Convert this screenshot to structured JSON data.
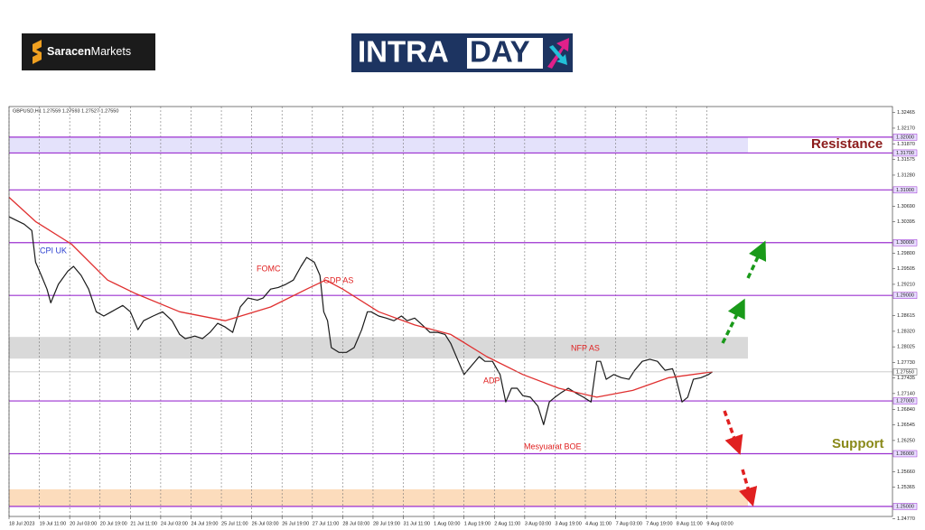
{
  "brand": {
    "broker_a": "Saracen",
    "broker_b": "Markets",
    "title_a": "INTRA",
    "title_b": "DAY"
  },
  "chart_data": {
    "type": "line",
    "symbol_info": "GBPUSD,H1  1.27559 1.27593 1.27527 1.27550",
    "xlim": [
      0,
      466
    ],
    "ylim": [
      1.2481,
      1.3258
    ],
    "grid": "x",
    "xticks": [
      {
        "value": 0,
        "label": "18 Jul 2023"
      },
      {
        "value": 16,
        "label": "19 Jul 11:00"
      },
      {
        "value": 32,
        "label": "20 Jul 03:00"
      },
      {
        "value": 48,
        "label": "20 Jul 19:00"
      },
      {
        "value": 64,
        "label": "21 Jul 11:00"
      },
      {
        "value": 80,
        "label": "24 Jul 03:00"
      },
      {
        "value": 96,
        "label": "24 Jul 19:00"
      },
      {
        "value": 112,
        "label": "25 Jul 11:00"
      },
      {
        "value": 128,
        "label": "26 Jul 03:00"
      },
      {
        "value": 144,
        "label": "26 Jul 19:00"
      },
      {
        "value": 160,
        "label": "27 Jul 11:00"
      },
      {
        "value": 176,
        "label": "28 Jul 03:00"
      },
      {
        "value": 192,
        "label": "28 Jul 19:00"
      },
      {
        "value": 208,
        "label": "31 Jul 11:00"
      },
      {
        "value": 224,
        "label": "1 Aug 03:00"
      },
      {
        "value": 240,
        "label": "1 Aug 19:00"
      },
      {
        "value": 256,
        "label": "2 Aug 11:00"
      },
      {
        "value": 272,
        "label": "3 Aug 03:00"
      },
      {
        "value": 288,
        "label": "3 Aug 19:00"
      },
      {
        "value": 304,
        "label": "4 Aug 11:00"
      },
      {
        "value": 320,
        "label": "7 Aug 03:00"
      },
      {
        "value": 336,
        "label": "7 Aug 19:00"
      },
      {
        "value": 352,
        "label": "8 Aug 11:00"
      },
      {
        "value": 368,
        "label": "9 Aug 03:00"
      }
    ],
    "yticks": [
      1.32465,
      {
        "value": 1.3217,
        "label": "1.32170"
      },
      {
        "value": 1.3187,
        "label": "1.31870"
      },
      1.31575,
      {
        "value": 1.3128,
        "label": "1.31280"
      },
      {
        "value": 1.3069,
        "label": "1.30690"
      },
      1.30395,
      {
        "value": 1.298,
        "label": "1.29800"
      },
      1.29505,
      {
        "value": 1.2921,
        "label": "1.29210"
      },
      1.28615,
      {
        "value": 1.2832,
        "label": "1.28320"
      },
      1.28025,
      {
        "value": 1.2773,
        "label": "1.27730"
      },
      1.27435,
      {
        "value": 1.2714,
        "label": "1.27140"
      },
      {
        "value": 1.2684,
        "label": "1.26840"
      },
      1.26545,
      {
        "value": 1.2625,
        "label": "1.26250"
      },
      {
        "value": 1.2566,
        "label": "1.25660"
      },
      1.25365,
      {
        "value": 1.2477,
        "label": "1.24770"
      }
    ],
    "levels": [
      {
        "value": 1.32,
        "label": "1.32000"
      },
      {
        "value": 1.317,
        "label": "1.31700"
      },
      {
        "value": 1.31,
        "label": "1.31000"
      },
      {
        "value": 1.3,
        "label": "1.30000"
      },
      {
        "value": 1.29,
        "label": "1.29000"
      },
      {
        "value": 1.27,
        "label": "1.27000"
      },
      {
        "value": 1.26,
        "label": "1.26000"
      },
      {
        "value": 1.25,
        "label": "1.25000"
      }
    ],
    "level_color": "#9b30d0",
    "zones": [
      {
        "from": 1.317,
        "to": 1.32,
        "color": "#e4e2fb"
      },
      {
        "from": 1.27802,
        "to": 1.28213,
        "color": "#d9d9d9"
      },
      {
        "from": 1.25,
        "to": 1.25325,
        "color": "#fcdcbc"
      }
    ],
    "last_price": {
      "value": 1.2755,
      "label": "1.27550"
    },
    "series": [
      {
        "color": "#1a1a1a",
        "x": [
          0,
          8,
          12,
          14,
          17,
          20,
          22,
          26,
          31,
          34,
          38,
          42,
          46,
          50,
          54,
          60,
          64,
          68,
          71,
          76,
          81,
          86,
          90,
          93,
          98,
          102,
          106,
          110,
          114,
          118,
          122,
          126,
          131,
          134,
          138,
          142,
          146,
          150,
          154,
          157,
          161,
          164,
          166,
          168,
          170,
          174,
          178,
          182,
          186,
          189,
          191,
          195,
          199,
          203,
          207,
          210,
          214,
          218,
          222,
          226,
          230,
          233,
          237,
          240,
          244,
          248,
          251,
          255,
          259,
          262,
          265,
          268,
          271,
          275,
          279,
          282,
          285,
          288,
          291,
          295,
          299,
          303,
          307,
          310,
          312,
          315,
          319,
          323,
          327,
          330,
          334,
          338,
          342,
          346,
          350,
          352,
          355,
          358,
          361,
          365,
          369,
          371
        ],
        "values": [
          1.3049,
          1.3035,
          1.3023,
          1.2963,
          1.2938,
          1.2912,
          1.2886,
          1.2921,
          1.2946,
          1.2955,
          1.2938,
          1.2912,
          1.2869,
          1.2861,
          1.2869,
          1.2881,
          1.2869,
          1.2835,
          1.2852,
          1.2861,
          1.2869,
          1.2852,
          1.2826,
          1.2818,
          1.2823,
          1.2818,
          1.283,
          1.2847,
          1.284,
          1.283,
          1.2878,
          1.2895,
          1.2891,
          1.2895,
          1.2912,
          1.2915,
          1.2921,
          1.2929,
          1.2955,
          1.2972,
          1.2963,
          1.2938,
          1.2869,
          1.2852,
          1.2801,
          1.2792,
          1.2792,
          1.2801,
          1.2835,
          1.2869,
          1.2869,
          1.2861,
          1.2857,
          1.2852,
          1.2861,
          1.2852,
          1.2857,
          1.2844,
          1.283,
          1.283,
          1.2826,
          1.2809,
          1.2775,
          1.275,
          1.2767,
          1.2784,
          1.2775,
          1.2775,
          1.275,
          1.2698,
          1.2724,
          1.2724,
          1.271,
          1.2707,
          1.269,
          1.2655,
          1.2698,
          1.2707,
          1.2715,
          1.2724,
          1.2715,
          1.2707,
          1.2698,
          1.2775,
          1.2775,
          1.2741,
          1.275,
          1.2744,
          1.2741,
          1.2758,
          1.2775,
          1.2779,
          1.2775,
          1.2758,
          1.2761,
          1.2741,
          1.2698,
          1.2707,
          1.2741,
          1.2744,
          1.275,
          1.2755
        ]
      },
      {
        "color": "#e03030",
        "x": [
          0,
          14,
          33,
          52,
          67,
          90,
          114,
          138,
          157,
          167,
          176,
          195,
          214,
          233,
          252,
          271,
          290,
          310,
          329,
          348,
          371
        ],
        "values": [
          1.3086,
          1.304,
          1.2997,
          1.2929,
          1.2903,
          1.2869,
          1.2852,
          1.2878,
          1.2912,
          1.2929,
          1.2912,
          1.2869,
          1.2844,
          1.2826,
          1.2784,
          1.275,
          1.2724,
          1.2707,
          1.272,
          1.2744,
          1.2755
        ]
      }
    ],
    "annotations": [
      {
        "text": "CPI UK",
        "color": "#2a3fd0"
      },
      {
        "text": "FOMC",
        "color": "#e02020"
      },
      {
        "text": "GDP AS",
        "color": "#e02020"
      },
      {
        "text": "ADP",
        "color": "#e02020"
      },
      {
        "text": "NFP AS",
        "color": "#e02020"
      },
      {
        "text": "Mesyuarat BOE",
        "color": "#e02020"
      },
      {
        "text": "Resistance",
        "color": "#8b1a1a"
      },
      {
        "text": "Support",
        "color": "#8a8a1a"
      }
    ]
  }
}
